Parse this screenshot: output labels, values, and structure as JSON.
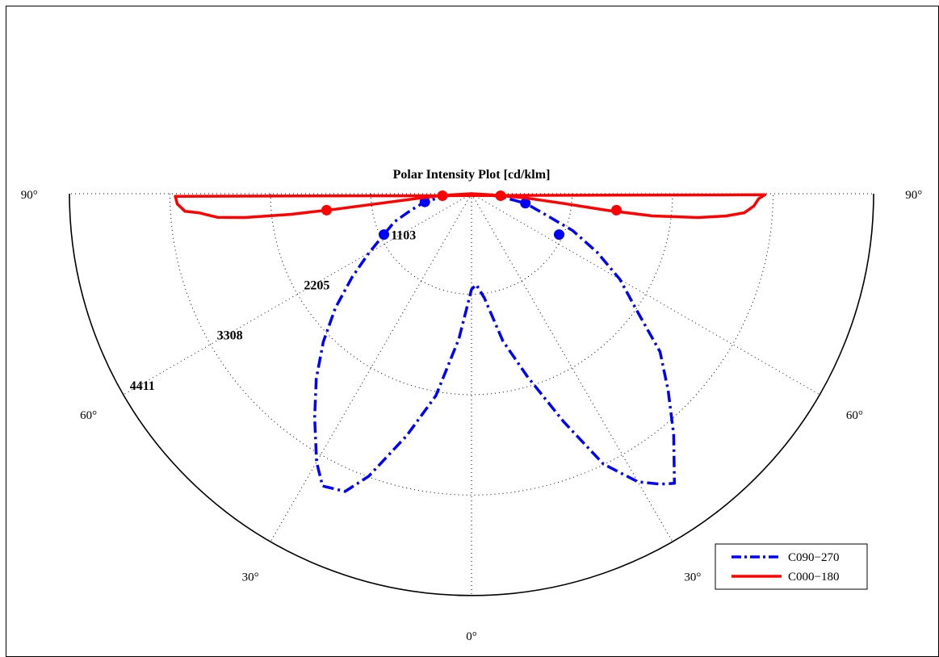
{
  "chart_data": {
    "type": "polar",
    "title": "Polar Intensity Plot [cd/klm]",
    "angle_labels": [
      {
        "text": "90°",
        "angle": -90
      },
      {
        "text": "60°",
        "angle": -60
      },
      {
        "text": "30°",
        "angle": -30
      },
      {
        "text": "0°",
        "angle": 0
      },
      {
        "text": "30°",
        "angle": 30
      },
      {
        "text": "60°",
        "angle": 60
      },
      {
        "text": "90°",
        "angle": 90
      }
    ],
    "rings": [
      1103,
      2205,
      3308,
      4411
    ],
    "radius_max": 4411,
    "grid": true,
    "legend_position": "bottom-right",
    "series": [
      {
        "name": "C090−270",
        "color": "#0000ff",
        "style": "dashdot",
        "points": [
          [
            -90,
            0
          ],
          [
            -85,
            300
          ],
          [
            -80,
            520
          ],
          [
            -75,
            680
          ],
          [
            -70,
            900
          ],
          [
            -65,
            1060
          ],
          [
            -60,
            1300
          ],
          [
            -55,
            1600
          ],
          [
            -50,
            1950
          ],
          [
            -45,
            2300
          ],
          [
            -40,
            2650
          ],
          [
            -35,
            3000
          ],
          [
            -30,
            3400
          ],
          [
            -27,
            3600
          ],
          [
            -23,
            3550
          ],
          [
            -20,
            3300
          ],
          [
            -15,
            2750
          ],
          [
            -10,
            2250
          ],
          [
            -5,
            1600
          ],
          [
            0,
            1050
          ],
          [
            3,
            1000
          ],
          [
            7,
            1150
          ],
          [
            12,
            1650
          ],
          [
            17,
            2100
          ],
          [
            22,
            2700
          ],
          [
            26,
            3300
          ],
          [
            30,
            3650
          ],
          [
            33,
            3800
          ],
          [
            35,
            3880
          ],
          [
            40,
            3450
          ],
          [
            45,
            3050
          ],
          [
            50,
            2700
          ],
          [
            55,
            2200
          ],
          [
            60,
            1880
          ],
          [
            65,
            1520
          ],
          [
            70,
            1180
          ],
          [
            75,
            800
          ],
          [
            80,
            600
          ],
          [
            85,
            300
          ],
          [
            90,
            0
          ]
        ],
        "marker_points": [
          [
            -80,
            520
          ],
          [
            -65,
            1060
          ],
          [
            65,
            1060
          ],
          [
            80,
            600
          ]
        ]
      },
      {
        "name": "C000−180",
        "color": "#ff0000",
        "style": "solid",
        "points": [
          [
            -90,
            0
          ],
          [
            -87,
            200
          ],
          [
            -86,
            400
          ],
          [
            -85,
            600
          ],
          [
            -84,
            1000
          ],
          [
            -83.5,
            1500
          ],
          [
            -83.5,
            2000
          ],
          [
            -84,
            2500
          ],
          [
            -84.7,
            2800
          ],
          [
            -86,
            3000
          ],
          [
            -86.5,
            3150
          ],
          [
            -88,
            3230
          ],
          [
            -89.5,
            3250
          ],
          [
            89.8,
            3220
          ],
          [
            89,
            3150
          ],
          [
            87.5,
            3100
          ],
          [
            86,
            3000
          ],
          [
            85,
            2800
          ],
          [
            84,
            2500
          ],
          [
            83,
            2000
          ],
          [
            83,
            1500
          ],
          [
            84,
            1000
          ],
          [
            85.5,
            600
          ],
          [
            86,
            400
          ],
          [
            87,
            200
          ],
          [
            90,
            0
          ]
        ],
        "marker_points": [
          [
            -86,
            320
          ],
          [
            -83.5,
            1600
          ],
          [
            83.5,
            1600
          ],
          [
            86,
            320
          ]
        ]
      }
    ]
  }
}
